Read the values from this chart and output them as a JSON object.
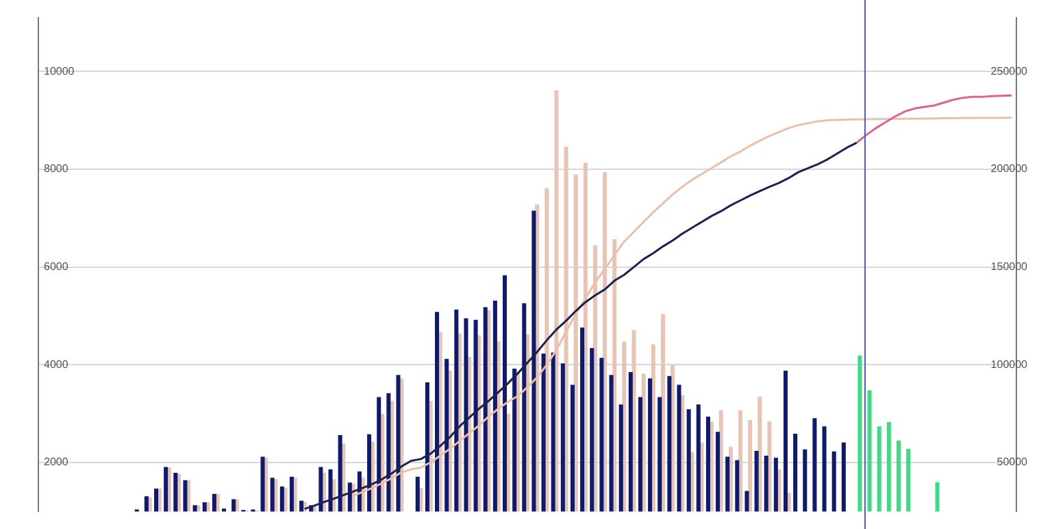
{
  "chart_data": {
    "type": "bar",
    "categories": [
      null,
      null,
      null,
      null,
      null,
      null,
      null,
      null,
      null,
      null,
      null,
      null,
      null,
      null,
      null,
      null,
      null,
      null,
      null,
      null,
      null,
      null,
      null,
      null,
      null,
      null,
      null,
      null,
      null,
      null,
      null,
      null,
      null,
      null,
      null,
      null,
      null,
      null,
      null,
      null,
      null,
      null,
      null,
      null,
      null,
      null,
      null,
      null,
      null,
      null,
      null,
      null,
      null,
      null,
      null,
      null,
      null,
      null,
      null,
      null,
      null,
      null,
      null,
      null,
      null,
      null,
      null,
      null,
      null,
      null,
      null,
      null,
      null,
      null,
      null,
      null,
      null,
      null,
      null,
      null,
      null,
      null,
      null,
      null,
      null,
      null,
      null,
      null,
      null,
      null,
      null,
      null,
      null,
      null,
      null,
      null,
      null,
      null,
      null,
      null,
      null
    ],
    "series": [
      {
        "color": "#0d1a6e",
        "values": [
          null,
          null,
          null,
          null,
          null,
          null,
          null,
          null,
          null,
          null,
          1030,
          1300,
          1460,
          1900,
          1780,
          1630,
          1120,
          1180,
          1350,
          1050,
          1240,
          1020,
          1030,
          2110,
          1680,
          1500,
          1700,
          1210,
          1120,
          1900,
          1850,
          2550,
          1580,
          1810,
          2570,
          3330,
          3410,
          3780,
          null,
          1700,
          3630,
          5070,
          4110,
          5120,
          4940,
          4910,
          5170,
          5300,
          5820,
          3910,
          5250,
          7140,
          4220,
          4240,
          4020,
          3580,
          4750,
          4330,
          4130,
          3780,
          3180,
          3840,
          3330,
          3710,
          3330,
          3760,
          3580,
          3080,
          3180,
          2930,
          2620,
          2110,
          2040,
          1410,
          2230,
          2130,
          2090,
          3870,
          2580,
          2260,
          2900,
          2730,
          2220,
          2400,
          null,
          null,
          null,
          null,
          null,
          null,
          null,
          null,
          null,
          null,
          null,
          null,
          null,
          null,
          null,
          null,
          null
        ]
      },
      {
        "color": "#e8c4b4",
        "values": [
          null,
          null,
          null,
          null,
          null,
          null,
          null,
          null,
          null,
          null,
          null,
          1280,
          1460,
          1890,
          1760,
          1630,
          1120,
          1180,
          1350,
          null,
          1240,
          1010,
          1010,
          2090,
          1650,
          1470,
          1690,
          1190,
          1120,
          1780,
          1650,
          2380,
          1560,
          1680,
          2420,
          2990,
          3250,
          3710,
          null,
          1470,
          3250,
          4660,
          3870,
          4630,
          4150,
          4590,
          5110,
          4470,
          2990,
          3870,
          4610,
          7270,
          7600,
          9600,
          8450,
          7880,
          8120,
          6430,
          7930,
          6560,
          4460,
          4700,
          3810,
          4410,
          5030,
          3980,
          3370,
          2200,
          2400,
          2830,
          3060,
          2310,
          3060,
          2860,
          3340,
          2830,
          1850,
          1370,
          null,
          null,
          null,
          null,
          null,
          null,
          null,
          null,
          null,
          null,
          null,
          null,
          null,
          null,
          null,
          null,
          null,
          null,
          null,
          null,
          null,
          null,
          null
        ]
      },
      {
        "color": "#3ddc84",
        "values": [
          null,
          null,
          null,
          null,
          null,
          null,
          null,
          null,
          null,
          null,
          null,
          null,
          null,
          null,
          null,
          null,
          null,
          null,
          null,
          null,
          null,
          null,
          null,
          null,
          null,
          null,
          null,
          null,
          null,
          null,
          null,
          null,
          null,
          null,
          null,
          null,
          null,
          null,
          null,
          null,
          null,
          null,
          null,
          null,
          null,
          null,
          null,
          null,
          null,
          null,
          null,
          null,
          null,
          null,
          null,
          null,
          null,
          null,
          null,
          null,
          null,
          null,
          null,
          null,
          null,
          null,
          null,
          null,
          null,
          null,
          null,
          null,
          null,
          null,
          null,
          null,
          null,
          null,
          null,
          null,
          null,
          null,
          null,
          null,
          4180,
          3470,
          2730,
          2820,
          2440,
          2270,
          null,
          null,
          1590,
          null,
          null,
          null,
          null,
          null,
          null,
          null,
          null
        ]
      },
      {
        "type": "line",
        "axis": "y2",
        "color": "#1a2250",
        "values": [
          null,
          null,
          null,
          null,
          null,
          null,
          null,
          null,
          null,
          null,
          null,
          null,
          null,
          null,
          null,
          null,
          null,
          null,
          null,
          null,
          null,
          null,
          null,
          null,
          null,
          null,
          null,
          26300,
          28000,
          29800,
          31500,
          33300,
          35200,
          37000,
          39000,
          41500,
          44500,
          48000,
          50900,
          51800,
          54500,
          58500,
          63000,
          68500,
          73000,
          77500,
          81500,
          86000,
          90500,
          95500,
          101000,
          106500,
          112500,
          118000,
          122500,
          127500,
          132000,
          135500,
          138500,
          143000,
          146000,
          150000,
          154000,
          157000,
          160500,
          163500,
          167000,
          170000,
          173000,
          176000,
          178500,
          181500,
          184000,
          186500,
          188800,
          191000,
          193000,
          195500,
          198500,
          200500,
          202500,
          205000,
          208000,
          211000,
          213500,
          null,
          null,
          null,
          null,
          null,
          null,
          null,
          null,
          null,
          null,
          null,
          null,
          null,
          null,
          null,
          null
        ]
      },
      {
        "type": "line",
        "axis": "y2",
        "color": "#e0609a",
        "values": [
          null,
          null,
          null,
          null,
          null,
          null,
          null,
          null,
          null,
          null,
          null,
          null,
          null,
          null,
          null,
          null,
          null,
          null,
          null,
          null,
          null,
          null,
          null,
          null,
          null,
          null,
          null,
          null,
          null,
          null,
          null,
          null,
          null,
          null,
          null,
          null,
          null,
          null,
          null,
          null,
          null,
          null,
          null,
          null,
          null,
          null,
          null,
          null,
          null,
          null,
          null,
          null,
          null,
          null,
          null,
          null,
          null,
          null,
          null,
          null,
          null,
          null,
          null,
          null,
          null,
          null,
          null,
          null,
          null,
          null,
          null,
          null,
          null,
          null,
          null,
          null,
          null,
          null,
          null,
          null,
          null,
          null,
          null,
          null,
          213500,
          217500,
          221000,
          224000,
          227000,
          229500,
          231000,
          231800,
          232500,
          234000,
          235500,
          236500,
          237000,
          237000,
          237300,
          237500,
          237700
        ]
      },
      {
        "type": "line",
        "axis": "y2",
        "color": "#ecc0a8",
        "values": [
          null,
          null,
          null,
          null,
          null,
          null,
          null,
          null,
          null,
          null,
          null,
          null,
          null,
          null,
          null,
          null,
          null,
          null,
          null,
          null,
          null,
          null,
          null,
          null,
          null,
          null,
          null,
          null,
          null,
          null,
          null,
          null,
          33000,
          35000,
          37000,
          39500,
          42000,
          45000,
          46500,
          47500,
          50000,
          53500,
          57000,
          61000,
          65000,
          69000,
          73500,
          77500,
          81000,
          84000,
          88500,
          93500,
          100000,
          107500,
          117000,
          126000,
          134000,
          142000,
          149000,
          156000,
          163000,
          168000,
          173000,
          178000,
          182500,
          187000,
          191000,
          194500,
          197500,
          200500,
          203500,
          206500,
          209000,
          212000,
          214500,
          217000,
          219000,
          221000,
          222500,
          223500,
          224500,
          225000,
          225200,
          225300,
          225400,
          225500,
          225600,
          225600,
          225700,
          225800,
          225800,
          225900,
          225900,
          226000,
          226000,
          226100,
          226100,
          226200,
          226200,
          226200,
          226300
        ]
      }
    ],
    "ylim": [
      1000,
      11100
    ],
    "yticks": [
      2000,
      4000,
      6000,
      8000,
      10000
    ],
    "y2lim": [
      25000,
      277500
    ],
    "y2ticks": [
      50000,
      100000,
      150000,
      200000,
      250000
    ],
    "grid": "y",
    "legend": false,
    "tick_labels": "y",
    "marker": "none",
    "line_style": "solid"
  }
}
